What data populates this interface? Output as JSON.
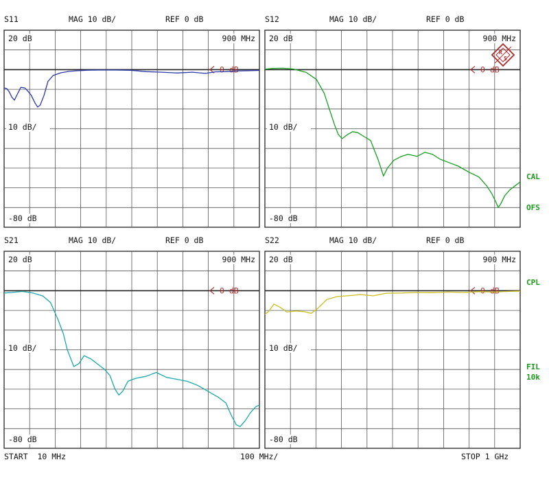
{
  "instrument": {
    "logo_letters": "R&S",
    "right_labels": [
      "CAL",
      "OFS",
      "CPL",
      "FIL",
      "10k"
    ],
    "footer": {
      "start": "START  10 MHz",
      "div": "100 MHz/",
      "stop": "STOP 1 GHz"
    }
  },
  "chart_data": [
    {
      "type": "line",
      "id": "S11",
      "title": "S11",
      "header_mag": "MAG 10 dB/",
      "header_ref": "REF 0 dB",
      "top_left": "20 dB",
      "top_right": "900 MHz",
      "mid_left": "10 dB/",
      "bot_left": "-80 dB",
      "ref_label": "0 dB",
      "x_unit": "MHz",
      "xlim": [
        10,
        1000
      ],
      "y_unit": "dB",
      "ylim": [
        -80,
        20
      ],
      "ref_level": 0,
      "logo": false,
      "series": [
        {
          "color": "#2b35a8",
          "points": [
            [
              10,
              -9.3
            ],
            [
              20,
              -9.6
            ],
            [
              30,
              -11.3
            ],
            [
              40,
              -14
            ],
            [
              50,
              -15.5
            ],
            [
              60,
              -12.8
            ],
            [
              75,
              -9
            ],
            [
              90,
              -9.3
            ],
            [
              100,
              -10.6
            ],
            [
              115,
              -13
            ],
            [
              130,
              -17
            ],
            [
              140,
              -19
            ],
            [
              150,
              -18
            ],
            [
              165,
              -13
            ],
            [
              180,
              -6
            ],
            [
              200,
              -3
            ],
            [
              230,
              -1.6
            ],
            [
              260,
              -0.9
            ],
            [
              290,
              -0.6
            ],
            [
              330,
              -0.3
            ],
            [
              380,
              -0.2
            ],
            [
              440,
              -0.2
            ],
            [
              500,
              -0.3
            ],
            [
              560,
              -1
            ],
            [
              620,
              -1.3
            ],
            [
              680,
              -1.7
            ],
            [
              740,
              -1.3
            ],
            [
              790,
              -1.9
            ],
            [
              830,
              -1.1
            ],
            [
              870,
              -1
            ],
            [
              910,
              -0.7
            ],
            [
              950,
              -0.6
            ],
            [
              1000,
              -0.4
            ]
          ]
        }
      ]
    },
    {
      "type": "line",
      "id": "S12",
      "title": "S12",
      "header_mag": "MAG 10 dB/",
      "header_ref": "REF 0 dB",
      "top_left": "20 dB",
      "top_right": "900 MHz",
      "mid_left": "10 dB/",
      "bot_left": "-80 dB",
      "ref_label": "0 dB",
      "x_unit": "MHz",
      "xlim": [
        10,
        1000
      ],
      "y_unit": "dB",
      "ylim": [
        -80,
        20
      ],
      "ref_level": 0,
      "logo": true,
      "series": [
        {
          "color": "#14a01e",
          "points": [
            [
              10,
              0.2
            ],
            [
              40,
              0.6
            ],
            [
              80,
              0.7
            ],
            [
              120,
              0.3
            ],
            [
              170,
              -1.4
            ],
            [
              210,
              -5
            ],
            [
              240,
              -12
            ],
            [
              260,
              -20
            ],
            [
              280,
              -28
            ],
            [
              295,
              -33
            ],
            [
              310,
              -35
            ],
            [
              330,
              -33
            ],
            [
              350,
              -31.5
            ],
            [
              370,
              -32
            ],
            [
              395,
              -34
            ],
            [
              420,
              -36
            ],
            [
              435,
              -41
            ],
            [
              450,
              -46
            ],
            [
              460,
              -50
            ],
            [
              470,
              -54
            ],
            [
              485,
              -50
            ],
            [
              510,
              -46
            ],
            [
              540,
              -44
            ],
            [
              565,
              -43
            ],
            [
              600,
              -44
            ],
            [
              630,
              -42
            ],
            [
              660,
              -43
            ],
            [
              690,
              -45.5
            ],
            [
              720,
              -47
            ],
            [
              760,
              -49
            ],
            [
              800,
              -52
            ],
            [
              840,
              -54.5
            ],
            [
              870,
              -59
            ],
            [
              890,
              -63
            ],
            [
              905,
              -67
            ],
            [
              915,
              -70
            ],
            [
              925,
              -68
            ],
            [
              940,
              -64
            ],
            [
              960,
              -61
            ],
            [
              980,
              -59
            ],
            [
              1000,
              -57
            ]
          ]
        }
      ]
    },
    {
      "type": "line",
      "id": "S21",
      "title": "S21",
      "header_mag": "MAG 10 dB/",
      "header_ref": "REF 0 dB",
      "top_left": "20 dB",
      "top_right": "900 MHz",
      "mid_left": "10 dB/",
      "bot_left": "-80 dB",
      "ref_label": "0 dB",
      "x_unit": "MHz",
      "xlim": [
        10,
        1000
      ],
      "y_unit": "dB",
      "ylim": [
        -80,
        20
      ],
      "ref_level": 0,
      "logo": false,
      "series": [
        {
          "color": "#1aa8a8",
          "points": [
            [
              10,
              -1.2
            ],
            [
              40,
              -0.9
            ],
            [
              80,
              -0.4
            ],
            [
              120,
              -1.1
            ],
            [
              160,
              -2.7
            ],
            [
              190,
              -6
            ],
            [
              220,
              -15
            ],
            [
              240,
              -22
            ],
            [
              255,
              -30
            ],
            [
              270,
              -35
            ],
            [
              280,
              -38.5
            ],
            [
              300,
              -37
            ],
            [
              320,
              -33
            ],
            [
              345,
              -34.5
            ],
            [
              370,
              -37
            ],
            [
              400,
              -40
            ],
            [
              420,
              -43
            ],
            [
              440,
              -50
            ],
            [
              455,
              -53
            ],
            [
              470,
              -51
            ],
            [
              490,
              -46
            ],
            [
              520,
              -44.5
            ],
            [
              560,
              -43.5
            ],
            [
              600,
              -41.5
            ],
            [
              640,
              -44
            ],
            [
              680,
              -45
            ],
            [
              720,
              -46
            ],
            [
              760,
              -48
            ],
            [
              800,
              -51
            ],
            [
              840,
              -54
            ],
            [
              870,
              -57
            ],
            [
              890,
              -63
            ],
            [
              910,
              -68
            ],
            [
              925,
              -69
            ],
            [
              945,
              -66
            ],
            [
              965,
              -62
            ],
            [
              985,
              -59
            ],
            [
              1000,
              -58
            ]
          ]
        }
      ]
    },
    {
      "type": "line",
      "id": "S22",
      "title": "S22",
      "header_mag": "MAG 10 dB/",
      "header_ref": "REF 0 dB",
      "top_left": "20 dB",
      "top_right": "900 MHz",
      "mid_left": "10 dB/",
      "bot_left": "-80 dB",
      "ref_label": "0 dB",
      "x_unit": "MHz",
      "xlim": [
        10,
        1000
      ],
      "y_unit": "dB",
      "ylim": [
        -80,
        20
      ],
      "ref_level": 0,
      "logo": false,
      "series": [
        {
          "color": "#c9bf1c",
          "points": [
            [
              10,
              -12
            ],
            [
              25,
              -10.5
            ],
            [
              45,
              -6.8
            ],
            [
              70,
              -8.5
            ],
            [
              95,
              -10.8
            ],
            [
              130,
              -10.3
            ],
            [
              160,
              -10.6
            ],
            [
              190,
              -11.5
            ],
            [
              215,
              -9
            ],
            [
              250,
              -4.5
            ],
            [
              290,
              -3
            ],
            [
              330,
              -2.6
            ],
            [
              380,
              -2
            ],
            [
              430,
              -2.6
            ],
            [
              480,
              -1.3
            ],
            [
              540,
              -1.2
            ],
            [
              600,
              -0.9
            ],
            [
              660,
              -1
            ],
            [
              720,
              -0.7
            ],
            [
              780,
              -0.9
            ],
            [
              840,
              -0.5
            ],
            [
              900,
              -0.7
            ],
            [
              950,
              -0.4
            ],
            [
              1000,
              -0.2
            ]
          ]
        }
      ]
    }
  ]
}
